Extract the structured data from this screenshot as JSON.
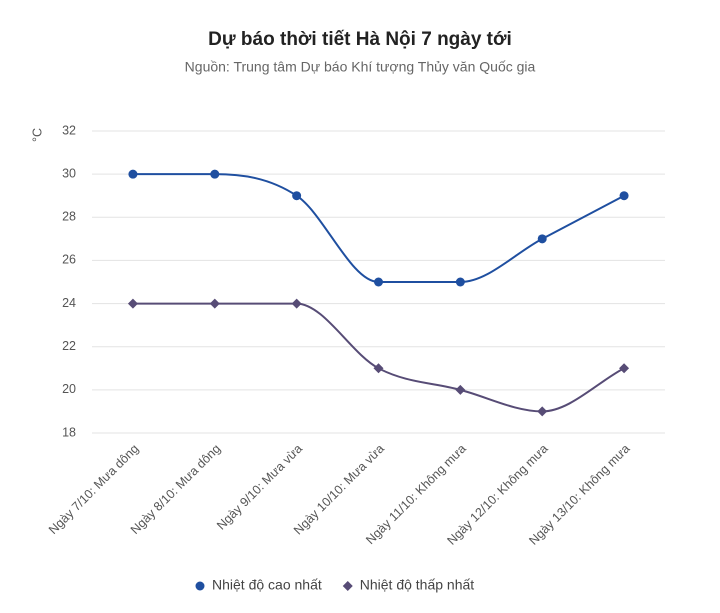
{
  "chart_data": {
    "type": "line",
    "title": "Dự báo thời tiết Hà Nội 7 ngày tới",
    "subtitle": "Nguồn: Trung tâm Dự báo Khí tượng Thủy văn Quốc gia",
    "y_unit": "°C",
    "categories": [
      "Ngày 7/10: Mưa dông",
      "Ngày 8/10: Mưa dông",
      "Ngày 9/10: Mưa vừa",
      "Ngày 10/10: Mưa vừa",
      "Ngày 11/10: Không mưa",
      "Ngày 12/10: Không mưa",
      "Ngày 13/10: Không mưa"
    ],
    "series": [
      {
        "name": "Nhiệt độ cao nhất",
        "color": "#1f4fa0",
        "marker": "circle",
        "values": [
          30,
          30,
          29,
          25,
          25,
          27,
          29
        ]
      },
      {
        "name": "Nhiệt độ thấp nhất",
        "color": "#574c76",
        "marker": "diamond",
        "values": [
          24,
          24,
          24,
          21,
          20,
          19,
          21
        ]
      }
    ],
    "ylim": [
      18,
      32
    ],
    "yticks": [
      18,
      20,
      22,
      24,
      26,
      28,
      30,
      32
    ],
    "grid": true,
    "smooth": true,
    "legend": "bottom"
  }
}
